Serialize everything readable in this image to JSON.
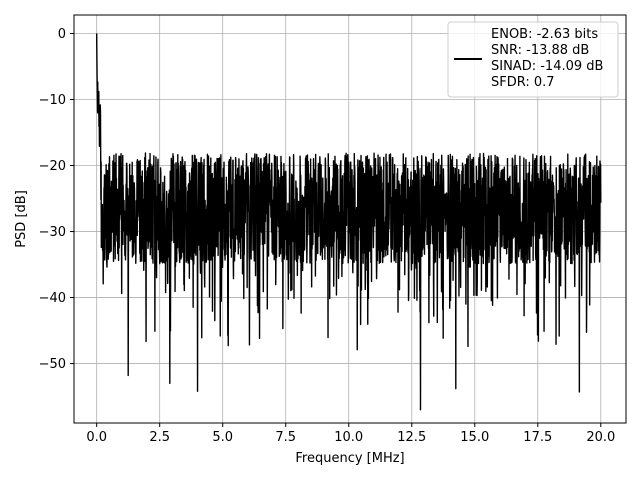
{
  "chart_data": {
    "type": "line",
    "title": "",
    "xlabel": "Frequency [MHz]",
    "ylabel": "PSD [dB]",
    "xlim": [
      -0.9,
      21.0
    ],
    "ylim": [
      -59.0,
      2.8
    ],
    "grid": true,
    "legend_placement": "top-right",
    "x_ticks": [
      0.0,
      2.5,
      5.0,
      7.5,
      10.0,
      12.5,
      15.0,
      17.5,
      20.0
    ],
    "x_tick_labels": [
      "0.0",
      "2.5",
      "5.0",
      "7.5",
      "10.0",
      "12.5",
      "15.0",
      "17.5",
      "20.0"
    ],
    "y_ticks": [
      0,
      -10,
      -20,
      -30,
      -40,
      -50
    ],
    "y_tick_labels": [
      "0",
      "−10",
      "−20",
      "−30",
      "−40",
      "−50"
    ],
    "series": [
      {
        "name": "ENOB: -2.63 bits\nSNR: -13.88 dB\nSINAD: -14.09 dB\nSFDR: 0.7",
        "color": "#000000",
        "x_range": [
          0.0,
          20.0
        ],
        "peak": {
          "x": 0.0,
          "y": 0.0
        },
        "noise_floor_mean": -26.5,
        "noise_floor_upper": -18.0,
        "noise_floor_lower": -34.0,
        "notable_dips": [
          {
            "x": 1.25,
            "y": -51.8
          },
          {
            "x": 2.9,
            "y": -53.0
          },
          {
            "x": 4.0,
            "y": -54.2
          },
          {
            "x": 12.85,
            "y": -57.0
          },
          {
            "x": 14.25,
            "y": -53.8
          },
          {
            "x": 19.15,
            "y": -54.3
          }
        ]
      }
    ],
    "legend_lines": [
      "ENOB: -2.63 bits",
      "SNR: -13.88 dB",
      "SINAD: -14.09 dB",
      "SFDR: 0.7"
    ]
  },
  "colors": {
    "line": "#000000",
    "grid": "#b0b0b0",
    "axes": "#000000",
    "background": "#ffffff"
  }
}
